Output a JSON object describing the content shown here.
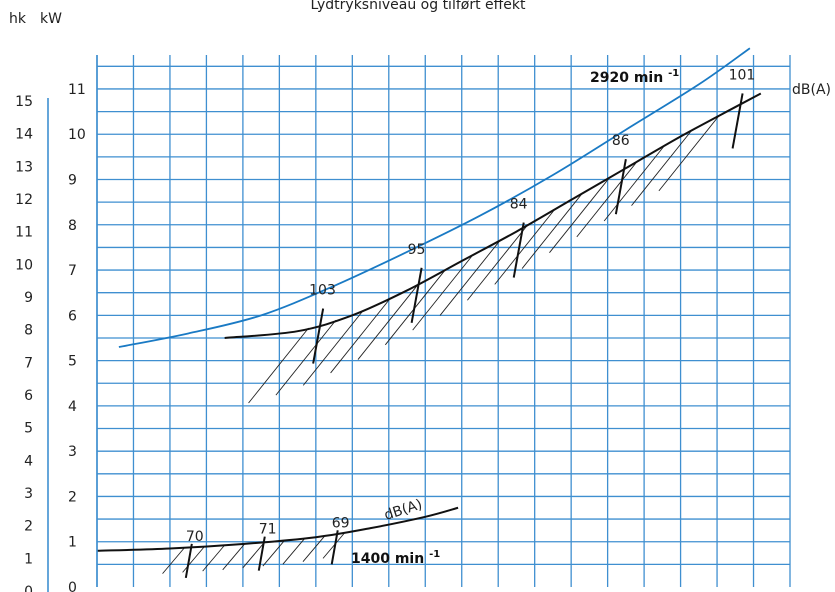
{
  "chart_data": {
    "type": "line",
    "title": "Lydtryksniveau og tilført effekt",
    "ylabel_left": "hk",
    "ylabel_right": "kW",
    "kw_ticks": [
      "0",
      "1",
      "2",
      "3",
      "4",
      "5",
      "6",
      "7",
      "8",
      "9",
      "10",
      "11"
    ],
    "hk_ticks": [
      "0",
      "1",
      "2",
      "3",
      "4",
      "5",
      "6",
      "7",
      "8",
      "9",
      "10",
      "11",
      "12",
      "13",
      "14",
      "15"
    ],
    "kw_range": [
      0,
      11.75
    ],
    "grid_columns": 19,
    "x_range": [
      0,
      19
    ],
    "series": [
      {
        "name": "2920 min-1",
        "points": [
          [
            0.6,
            5.3
          ],
          [
            2.5,
            5.6
          ],
          [
            4.5,
            6.0
          ],
          [
            6.5,
            6.65
          ],
          [
            8.5,
            7.4
          ],
          [
            10.5,
            8.2
          ],
          [
            12.5,
            9.1
          ],
          [
            14.5,
            10.1
          ],
          [
            16.5,
            11.1
          ],
          [
            17.9,
            11.9
          ]
        ],
        "color": "#1a7ac4"
      },
      {
        "name": "2920 min-1 (dB(A))",
        "points": [
          [
            3.5,
            5.5
          ],
          [
            5.5,
            5.65
          ],
          [
            7.0,
            6.0
          ],
          [
            8.5,
            6.55
          ],
          [
            10.0,
            7.2
          ],
          [
            11.5,
            7.85
          ],
          [
            13.0,
            8.55
          ],
          [
            14.5,
            9.25
          ],
          [
            16.0,
            9.95
          ],
          [
            17.5,
            10.6
          ],
          [
            18.2,
            10.9
          ]
        ],
        "color": "#111111"
      },
      {
        "name": "1400 min-1",
        "points": [
          [
            0,
            0.8
          ],
          [
            2.0,
            0.85
          ],
          [
            4.0,
            0.95
          ],
          [
            6.0,
            1.1
          ],
          [
            7.5,
            1.3
          ],
          [
            9.0,
            1.55
          ],
          [
            9.9,
            1.75
          ]
        ],
        "color": "#111111"
      }
    ],
    "noise_markers_high": [
      {
        "label": "103",
        "x": 6.2,
        "y": 6.15
      },
      {
        "label": "95",
        "x": 8.9,
        "y": 7.05
      },
      {
        "label": "84",
        "x": 11.7,
        "y": 8.05
      },
      {
        "label": "86",
        "x": 14.5,
        "y": 9.45
      },
      {
        "label": "101",
        "x": 17.7,
        "y": 10.9
      }
    ],
    "noise_markers_low": [
      {
        "label": "70",
        "x": 2.6,
        "y": 0.82
      },
      {
        "label": "71",
        "x": 4.6,
        "y": 0.98
      },
      {
        "label": "69",
        "x": 6.6,
        "y": 1.12
      }
    ],
    "annotations": {
      "speed_high": "2920 min-1",
      "speed_low": "1400 min-1",
      "dba_high": "dB(A)",
      "dba_low": "dB(A)"
    }
  }
}
